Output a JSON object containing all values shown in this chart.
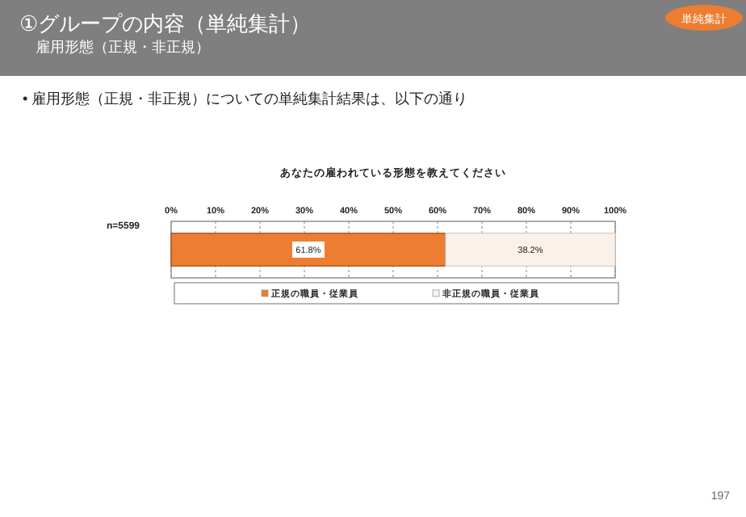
{
  "chart_data": {
    "type": "bar",
    "orientation": "horizontal",
    "stacked": true,
    "title": "あなたの雇われている形態を教えてください",
    "annotations": [
      "①グループの内容（単純集計）",
      "雇用形態（正規・非正規）",
      "単純集計",
      "• 雇用形態（正規・非正規）についての単純集計結果は、以下の通り",
      "197"
    ],
    "categories": [
      "n=5599"
    ],
    "series": [
      {
        "name": "正規の職員・従業員",
        "color": "#ed7d31",
        "values": [
          61.8
        ]
      },
      {
        "name": "非正規の職員・従業員",
        "color": "#fbf1e8",
        "values": [
          38.2
        ]
      }
    ],
    "xlim": [
      0,
      100
    ],
    "xticks": [
      {
        "value": 0,
        "label": "0%"
      },
      {
        "value": 10,
        "label": "10%"
      },
      {
        "value": 20,
        "label": "20%"
      },
      {
        "value": 30,
        "label": "30%"
      },
      {
        "value": 40,
        "label": "40%"
      },
      {
        "value": 50,
        "label": "50%"
      },
      {
        "value": 60,
        "label": "60%"
      },
      {
        "value": 70,
        "label": "70%"
      },
      {
        "value": 80,
        "label": "80%"
      },
      {
        "value": 90,
        "label": "90%"
      },
      {
        "value": 100,
        "label": "100%"
      }
    ],
    "value_labels": [
      [
        "61.8%"
      ],
      [
        "38.2%"
      ]
    ],
    "grid": "x",
    "legend": "bottom"
  }
}
